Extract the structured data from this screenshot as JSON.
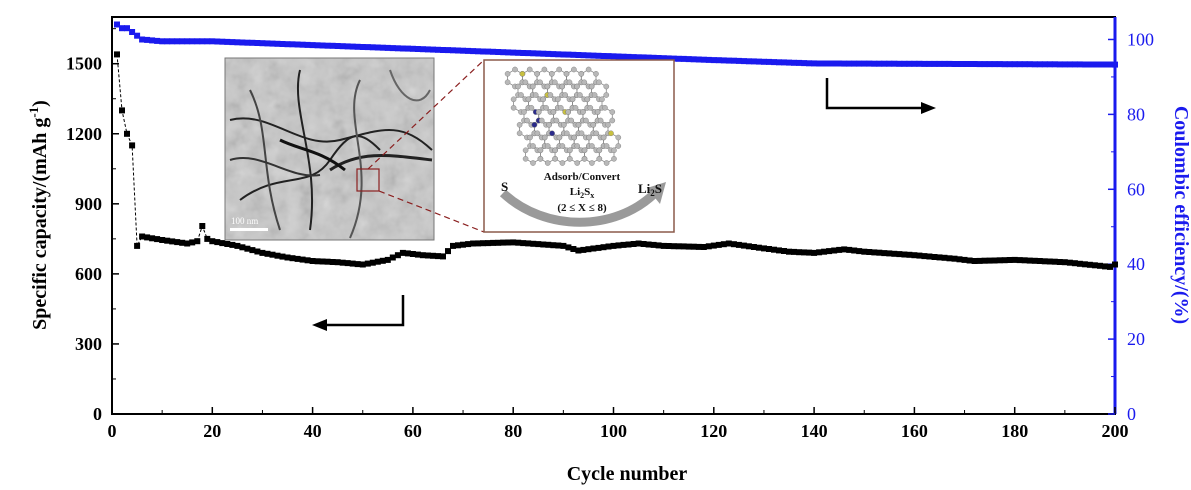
{
  "chart_data": {
    "type": "scatter",
    "xlabel": "Cycle number",
    "ylabel": "Specific capacity/(mAh g",
    "ylabel_sup": "-1",
    "ylabel_close": ")",
    "y2label": "Coulombic efficiency/(%)",
    "xlim": [
      0,
      200
    ],
    "ylim": [
      0,
      1700
    ],
    "y2lim": [
      0,
      106
    ],
    "xticks": [
      0,
      20,
      40,
      60,
      80,
      100,
      120,
      140,
      160,
      180,
      200
    ],
    "yticks": [
      0,
      300,
      600,
      900,
      1200,
      1500
    ],
    "y2ticks": [
      0,
      20,
      40,
      60,
      80,
      100
    ],
    "colors": {
      "capacity": "#000000",
      "efficiency": "#1a1aee",
      "axis_right": "#1a1aee"
    },
    "series": [
      {
        "axis": "left",
        "keypoints": [
          [
            1,
            1540
          ],
          [
            2,
            1300
          ],
          [
            3,
            1200
          ],
          [
            4,
            1150
          ],
          [
            5,
            720
          ],
          [
            6,
            760
          ],
          [
            10,
            745
          ],
          [
            15,
            730
          ],
          [
            17,
            740
          ],
          [
            18,
            805
          ],
          [
            19,
            750
          ],
          [
            20,
            740
          ],
          [
            25,
            720
          ],
          [
            30,
            690
          ],
          [
            35,
            670
          ],
          [
            40,
            655
          ],
          [
            45,
            650
          ],
          [
            50,
            640
          ],
          [
            55,
            660
          ],
          [
            58,
            690
          ],
          [
            62,
            680
          ],
          [
            66,
            675
          ],
          [
            68,
            720
          ],
          [
            72,
            730
          ],
          [
            80,
            735
          ],
          [
            90,
            720
          ],
          [
            93,
            700
          ],
          [
            100,
            720
          ],
          [
            105,
            730
          ],
          [
            110,
            720
          ],
          [
            118,
            715
          ],
          [
            123,
            730
          ],
          [
            128,
            715
          ],
          [
            135,
            695
          ],
          [
            140,
            690
          ],
          [
            146,
            705
          ],
          [
            150,
            695
          ],
          [
            160,
            680
          ],
          [
            168,
            665
          ],
          [
            172,
            655
          ],
          [
            180,
            660
          ],
          [
            190,
            650
          ],
          [
            199,
            630
          ],
          [
            200,
            640
          ]
        ]
      },
      {
        "axis": "right",
        "keypoints": [
          [
            1,
            104
          ],
          [
            2,
            103
          ],
          [
            3,
            103
          ],
          [
            4,
            102
          ],
          [
            5,
            101
          ],
          [
            6,
            100
          ],
          [
            10,
            99.5
          ],
          [
            20,
            99.5
          ],
          [
            40,
            98.5
          ],
          [
            60,
            97.5
          ],
          [
            80,
            96.5
          ],
          [
            100,
            95.5
          ],
          [
            120,
            94.5
          ],
          [
            140,
            93.6
          ],
          [
            160,
            93.5
          ],
          [
            180,
            93.4
          ],
          [
            200,
            93.3
          ]
        ]
      }
    ]
  },
  "inset": {
    "scale_bar": "100 nm",
    "process_label": "Adsorb/Convert",
    "species_base": "Li",
    "species_sub": "2",
    "species_mid": "S",
    "species_subx": "x",
    "range_label": "(2 ≤ X ≤ 8)",
    "left_reactant": "S",
    "right_product_base": "Li",
    "right_product_sub": "2",
    "right_product_end": "S"
  }
}
